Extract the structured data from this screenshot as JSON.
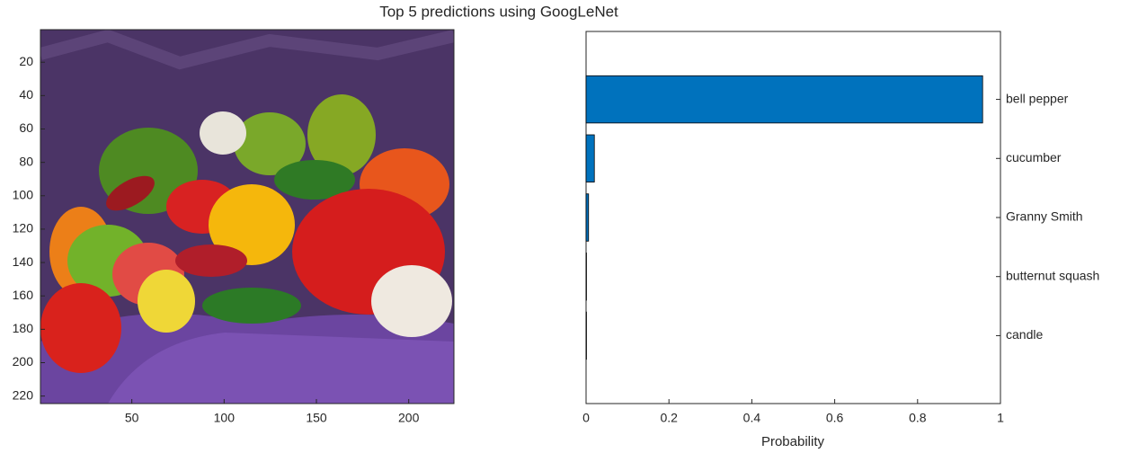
{
  "title": "Top 5 predictions using GoogLeNet",
  "chart_data": [
    {
      "type": "image",
      "xlim": [
        0.5,
        224.5
      ],
      "ylim": [
        0.5,
        224.5
      ],
      "y_reversed": true,
      "xticks": [
        50,
        100,
        150,
        200
      ],
      "yticks": [
        20,
        40,
        60,
        80,
        100,
        120,
        140,
        160,
        180,
        200,
        220
      ]
    },
    {
      "type": "barh",
      "categories": [
        "bell pepper",
        "cucumber",
        "Granny Smith",
        "butternut squash",
        "candle"
      ],
      "values": [
        0.957,
        0.02,
        0.006,
        0.001,
        0.001
      ],
      "color": "#0072bd",
      "xlim": [
        0,
        1
      ],
      "xticks": [
        0,
        0.2,
        0.4,
        0.6,
        0.8,
        1
      ],
      "xlabel": "Probability",
      "ytick_side": "right"
    }
  ]
}
